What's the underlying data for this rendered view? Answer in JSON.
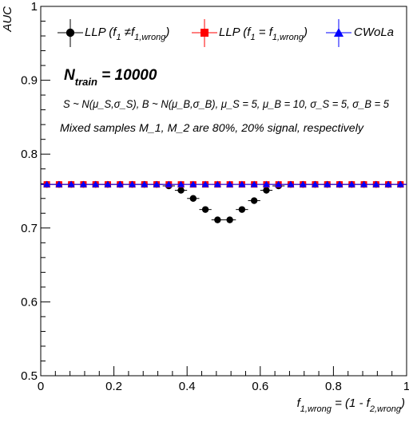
{
  "chart_data": {
    "type": "scatter",
    "xlabel": {
      "base": "f",
      "sub": "1,wrong",
      "mid": " = (1 - f",
      "sub2": "2,wrong",
      "end": ")"
    },
    "ylabel": "AUC",
    "xlim": [
      0,
      1
    ],
    "ylim": [
      0.5,
      1.0
    ],
    "x_ticks": [
      "0",
      "0.2",
      "0.4",
      "0.6",
      "0.8",
      "1"
    ],
    "y_ticks": [
      "0.5",
      "0.6",
      "0.7",
      "0.8",
      "0.9",
      "1"
    ],
    "legend": {
      "placement": "top",
      "entries": [
        {
          "base": "LLP (f",
          "sub": "1",
          "mid": " ≠f",
          "sub2": "1,wrong",
          "end": ")"
        },
        {
          "base": "LLP (f",
          "sub": "1",
          "mid": " = f",
          "sub2": "1,wrong",
          "end": ")"
        },
        {
          "base": "CWoLa",
          "sub": "",
          "mid": "",
          "sub2": "",
          "end": ""
        }
      ]
    },
    "annotations": {
      "ntrain": {
        "base": "N",
        "sub": "train",
        "end": " = 10000"
      },
      "dist": "S ~ N(μ_S,σ_S), B ~ N(μ_B,σ_B), μ_S = 5, μ_B = 10, σ_S = 5, σ_B = 5",
      "mixed": "Mixed samples M_1, M_2 are 80%, 20% signal, respectively"
    },
    "x_error": 0.0167,
    "series": [
      {
        "name": "LLP (f1 ≠f1,wrong)",
        "marker": "circle",
        "color": "#000000",
        "x": [
          0.0167,
          0.05,
          0.0833,
          0.1167,
          0.15,
          0.1833,
          0.2167,
          0.25,
          0.2833,
          0.3167,
          0.35,
          0.3833,
          0.4167,
          0.45,
          0.4833,
          0.5167,
          0.55,
          0.5833,
          0.6167,
          0.65,
          0.6833,
          0.7167,
          0.75,
          0.7833,
          0.8167,
          0.85,
          0.8833,
          0.9167,
          0.95,
          0.9833
        ],
        "y": [
          0.759,
          0.759,
          0.759,
          0.759,
          0.759,
          0.759,
          0.759,
          0.759,
          0.759,
          0.759,
          0.757,
          0.751,
          0.74,
          0.725,
          0.711,
          0.711,
          0.725,
          0.737,
          0.751,
          0.757,
          0.759,
          0.759,
          0.759,
          0.759,
          0.759,
          0.759,
          0.759,
          0.759,
          0.759,
          0.759
        ]
      },
      {
        "name": "LLP (f1 = f1,wrong)",
        "marker": "square",
        "color": "#ff0000",
        "x": [
          0.0167,
          0.05,
          0.0833,
          0.1167,
          0.15,
          0.1833,
          0.2167,
          0.25,
          0.2833,
          0.3167,
          0.35,
          0.3833,
          0.4167,
          0.45,
          0.4833,
          0.5167,
          0.55,
          0.5833,
          0.6167,
          0.65,
          0.6833,
          0.7167,
          0.75,
          0.7833,
          0.8167,
          0.85,
          0.8833,
          0.9167,
          0.95,
          0.9833
        ],
        "y": [
          0.759,
          0.759,
          0.759,
          0.759,
          0.759,
          0.759,
          0.759,
          0.759,
          0.759,
          0.759,
          0.759,
          0.759,
          0.759,
          0.759,
          0.759,
          0.759,
          0.759,
          0.759,
          0.759,
          0.759,
          0.759,
          0.759,
          0.759,
          0.759,
          0.759,
          0.759,
          0.759,
          0.759,
          0.759,
          0.759
        ]
      },
      {
        "name": "CWoLa",
        "marker": "triangle",
        "color": "#0000ff",
        "x": [
          0.0167,
          0.05,
          0.0833,
          0.1167,
          0.15,
          0.1833,
          0.2167,
          0.25,
          0.2833,
          0.3167,
          0.35,
          0.3833,
          0.4167,
          0.45,
          0.4833,
          0.5167,
          0.55,
          0.5833,
          0.6167,
          0.65,
          0.6833,
          0.7167,
          0.75,
          0.7833,
          0.8167,
          0.85,
          0.8833,
          0.9167,
          0.95,
          0.9833
        ],
        "y": [
          0.759,
          0.759,
          0.759,
          0.759,
          0.759,
          0.759,
          0.759,
          0.759,
          0.759,
          0.759,
          0.759,
          0.759,
          0.759,
          0.759,
          0.759,
          0.759,
          0.759,
          0.759,
          0.759,
          0.759,
          0.759,
          0.759,
          0.759,
          0.759,
          0.759,
          0.759,
          0.759,
          0.759,
          0.759,
          0.759
        ]
      }
    ]
  }
}
